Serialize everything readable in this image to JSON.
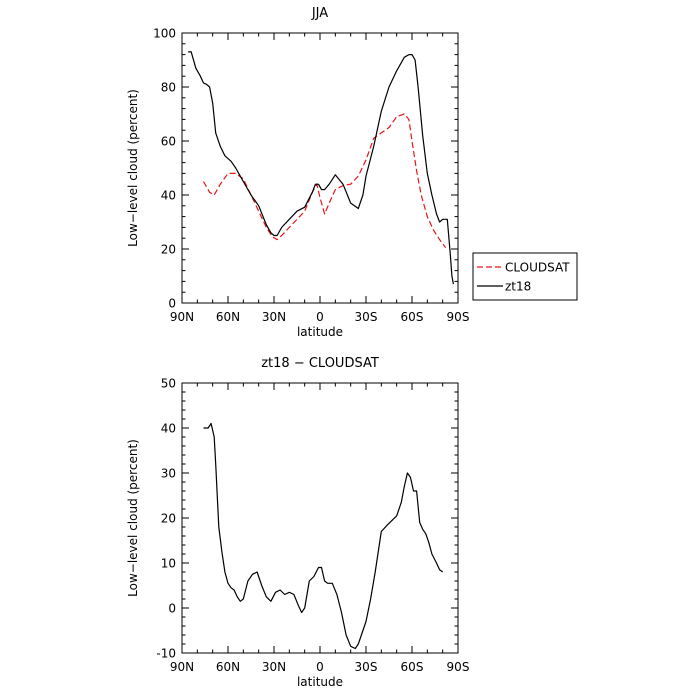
{
  "chart_data": [
    {
      "type": "line",
      "title": "JJA",
      "xlabel": "latitude",
      "ylabel": "Low−level cloud (percent)",
      "x_ticks": [
        {
          "value": -90,
          "label": "90N"
        },
        {
          "value": -60,
          "label": "60N"
        },
        {
          "value": -30,
          "label": "30N"
        },
        {
          "value": 0,
          "label": "0"
        },
        {
          "value": 30,
          "label": "30S"
        },
        {
          "value": 60,
          "label": "60S"
        },
        {
          "value": 90,
          "label": "90S"
        }
      ],
      "xlim": [
        -90,
        90
      ],
      "ylim": [
        0,
        100
      ],
      "y_ticks": [
        0,
        20,
        40,
        60,
        80,
        100
      ],
      "legend": "right",
      "series": [
        {
          "name": "CLOUDSAT",
          "style": "dashed",
          "color": "#e8141b",
          "x": [
            -76,
            -72,
            -69,
            -65,
            -60,
            -55,
            -50,
            -45,
            -40,
            -35,
            -31,
            -28,
            -25,
            -20,
            -15,
            -10,
            -5,
            -2,
            0,
            3,
            6,
            10,
            15,
            20,
            25,
            30,
            35,
            40,
            45,
            50,
            55,
            58,
            60,
            63,
            66,
            70,
            74,
            78,
            82
          ],
          "y": [
            45,
            41,
            40,
            44,
            48,
            48,
            46,
            40,
            34,
            28,
            24.5,
            23.5,
            25,
            28,
            31,
            34,
            41,
            44,
            39,
            33,
            37,
            42,
            43.5,
            44,
            47,
            53,
            61,
            63,
            65,
            69,
            70,
            68,
            60,
            49,
            40,
            32,
            27,
            23.5,
            20.5
          ]
        },
        {
          "name": "zt18",
          "style": "solid",
          "color": "#000000",
          "x": [
            -86,
            -84,
            -81,
            -78,
            -76,
            -74,
            -72,
            -70,
            -68,
            -65,
            -62,
            -58,
            -55,
            -50,
            -45,
            -40,
            -35,
            -32,
            -30,
            -28,
            -25,
            -20,
            -15,
            -10,
            -5,
            -3,
            -1,
            1,
            3,
            6,
            10,
            15,
            20,
            25,
            28,
            30,
            35,
            40,
            45,
            50,
            55,
            58,
            60,
            62,
            64,
            67,
            70,
            73,
            76,
            78,
            80,
            83,
            85,
            86,
            87
          ],
          "y": [
            93,
            93,
            87,
            84,
            81.5,
            81,
            80,
            74,
            63,
            58,
            54.5,
            52.5,
            50,
            45,
            40,
            36,
            29,
            26,
            25,
            25,
            28,
            31,
            34,
            35.5,
            41,
            44,
            44,
            42,
            42,
            44,
            47.5,
            44,
            37,
            35,
            40,
            47,
            58,
            71,
            80,
            86,
            91,
            92,
            92,
            90,
            80,
            62,
            48,
            40,
            33,
            30,
            31,
            31,
            18,
            10,
            7
          ]
        }
      ]
    },
    {
      "type": "line",
      "title": "zt18 − CLOUDSAT",
      "xlabel": "latitude",
      "ylabel": "Low−level cloud (percent)",
      "x_ticks": [
        {
          "value": -90,
          "label": "90N"
        },
        {
          "value": -60,
          "label": "60N"
        },
        {
          "value": -30,
          "label": "30N"
        },
        {
          "value": 0,
          "label": "0"
        },
        {
          "value": 30,
          "label": "30S"
        },
        {
          "value": 60,
          "label": "60S"
        },
        {
          "value": 90,
          "label": "90S"
        }
      ],
      "xlim": [
        -90,
        90
      ],
      "ylim": [
        -10,
        50
      ],
      "y_ticks": [
        -10,
        0,
        10,
        20,
        30,
        40,
        50
      ],
      "series": [
        {
          "style": "solid",
          "color": "#000000",
          "x": [
            -76,
            -73,
            -71,
            -69,
            -68,
            -66,
            -64,
            -62,
            -60,
            -58,
            -56,
            -54,
            -52,
            -50,
            -47,
            -44,
            -41,
            -38,
            -35,
            -32,
            -29,
            -26,
            -23,
            -20,
            -17,
            -14,
            -12,
            -10,
            -7,
            -4,
            -1,
            1,
            3,
            5,
            8,
            11,
            14,
            17,
            20,
            23,
            25,
            27,
            30,
            33,
            36,
            40,
            44,
            47,
            50,
            53,
            55,
            57,
            59,
            61,
            63,
            65,
            67,
            69,
            71,
            73,
            76,
            78,
            80
          ],
          "y": [
            40,
            40,
            41,
            38,
            32,
            18,
            12.5,
            8,
            5.5,
            4.5,
            4,
            2.5,
            1.5,
            2,
            6,
            7.5,
            8,
            5,
            2.5,
            1.5,
            3.5,
            4,
            3,
            3.5,
            3,
            0.5,
            -1,
            0,
            6,
            7,
            9,
            9,
            6,
            5.5,
            5.5,
            3,
            -1,
            -6,
            -8.5,
            -9,
            -8,
            -6,
            -3,
            2,
            8,
            17,
            18.5,
            19.5,
            20.5,
            23.5,
            27,
            30,
            29,
            26,
            26,
            19,
            17.5,
            16.5,
            14.5,
            12,
            10,
            8.5,
            8
          ]
        }
      ]
    }
  ]
}
